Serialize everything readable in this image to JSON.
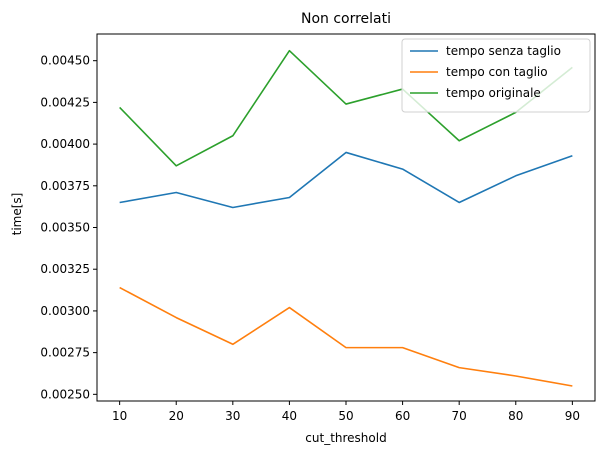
{
  "chart_data": {
    "type": "line",
    "title": "Non correlati",
    "xlabel": "cut_threshold",
    "ylabel": "time[s]",
    "x": [
      10,
      20,
      30,
      40,
      50,
      60,
      70,
      80,
      90
    ],
    "xlim": [
      6,
      94
    ],
    "ylim": [
      0.00246,
      0.00466
    ],
    "xticks": [
      10,
      20,
      30,
      40,
      50,
      60,
      70,
      80,
      90
    ],
    "yticks": [
      0.0025,
      0.00275,
      0.003,
      0.00325,
      0.0035,
      0.00375,
      0.004,
      0.00425,
      0.0045
    ],
    "ytick_labels": [
      "0.00250",
      "0.00275",
      "0.00300",
      "0.00325",
      "0.00350",
      "0.00375",
      "0.00400",
      "0.00425",
      "0.00450"
    ],
    "grid": false,
    "legend_position": "top-right",
    "series": [
      {
        "name": "tempo senza taglio",
        "color": "#1f77b4",
        "values": [
          0.00365,
          0.00371,
          0.00362,
          0.00368,
          0.00395,
          0.00385,
          0.00365,
          0.00381,
          0.00393
        ]
      },
      {
        "name": "tempo con taglio",
        "color": "#ff7f0e",
        "values": [
          0.00314,
          0.00296,
          0.0028,
          0.00302,
          0.00278,
          0.00278,
          0.00266,
          0.00261,
          0.00255
        ]
      },
      {
        "name": "tempo originale",
        "color": "#2ca02c",
        "values": [
          0.00422,
          0.00387,
          0.00405,
          0.00456,
          0.00424,
          0.00433,
          0.00402,
          0.00419,
          0.00446
        ]
      }
    ]
  }
}
